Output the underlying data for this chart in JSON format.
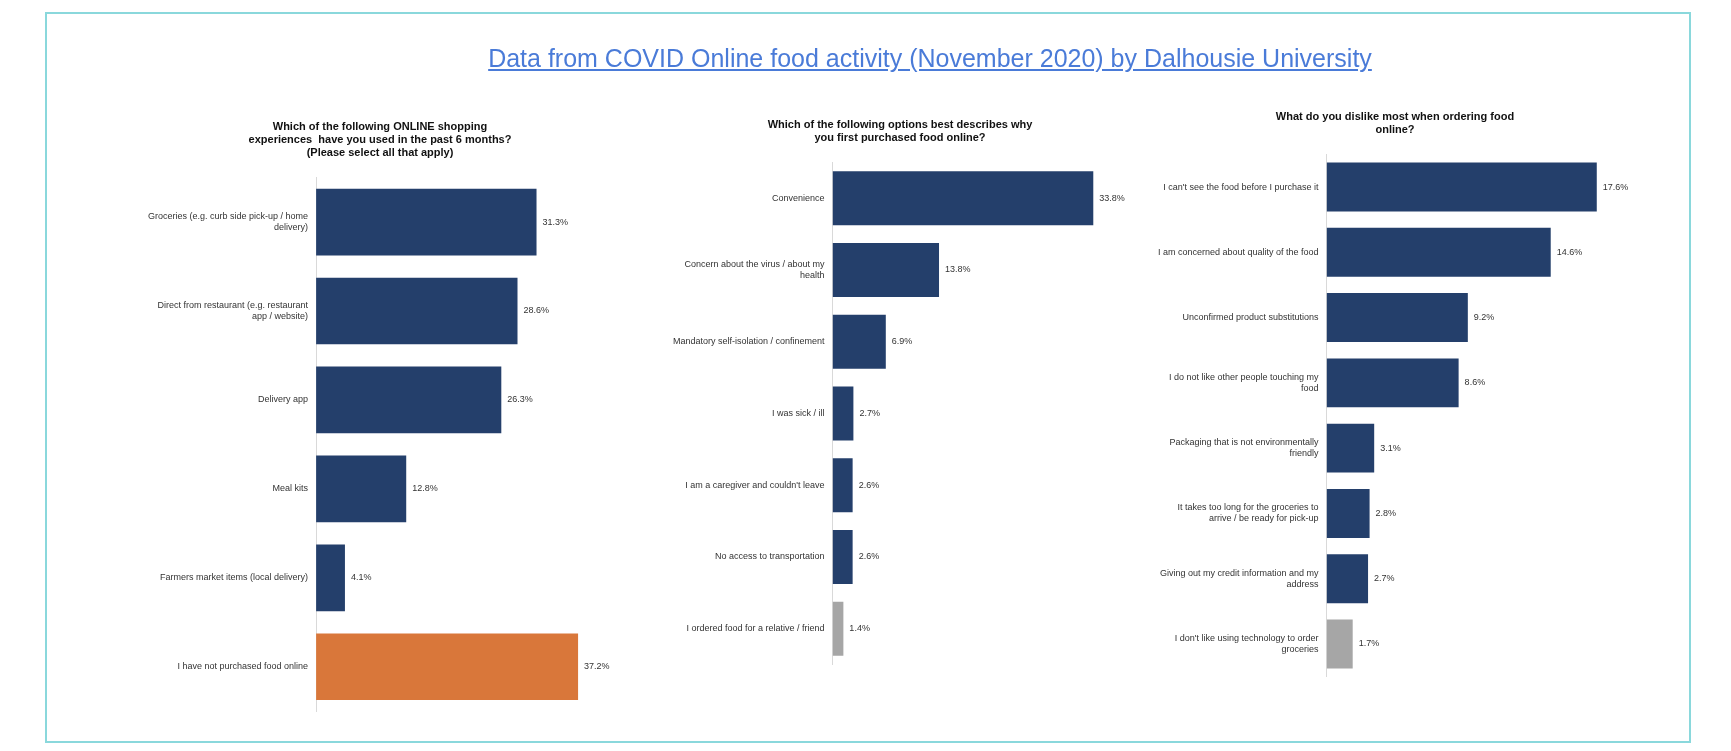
{
  "chart_data": [
    {
      "type": "bar",
      "orientation": "horizontal",
      "tick_labels": "y",
      "title": "Which of the following ONLINE shopping experiences  have you used in the past 6 months? (Please select all that apply)",
      "annotations": [
        "Data from COVID Online food activity (November 2020) by Dalhousie University"
      ],
      "categories": [
        "Groceries (e.g. curb side pick-up / home delivery)",
        "Direct from restaurant (e.g. restaurant app / website)",
        "Delivery app",
        "Meal kits",
        "Farmers market items (local delivery)",
        "I have not purchased food online"
      ],
      "values": [
        31.3,
        28.6,
        26.3,
        12.8,
        4.1,
        37.2
      ],
      "value_labels": [
        "31.3%",
        "28.6%",
        "26.3%",
        "12.8%",
        "4.1%",
        "37.2%"
      ],
      "colors": [
        "#243f6b",
        "#243f6b",
        "#243f6b",
        "#243f6b",
        "#243f6b",
        "#d9773a"
      ]
    },
    {
      "type": "bar",
      "orientation": "horizontal",
      "tick_labels": "y",
      "title": "Which of the following options best describes why you first purchased food online?",
      "categories": [
        "Convenience",
        "Concern about the virus / about my health",
        "Mandatory self-isolation / confinement",
        "I was sick / ill",
        "I am a caregiver and couldn't leave",
        "No access to transportation",
        "I ordered food for a relative / friend"
      ],
      "values": [
        33.8,
        13.8,
        6.9,
        2.7,
        2.6,
        2.6,
        1.4
      ],
      "value_labels": [
        "33.8%",
        "13.8%",
        "6.9%",
        "2.7%",
        "2.6%",
        "2.6%",
        "1.4%"
      ],
      "colors": [
        "#243f6b",
        "#243f6b",
        "#243f6b",
        "#243f6b",
        "#243f6b",
        "#243f6b",
        "#a6a6a6"
      ]
    },
    {
      "type": "bar",
      "orientation": "horizontal",
      "tick_labels": "y",
      "title": "What do you dislike most when ordering food online?",
      "categories": [
        "I can't see the food before I purchase it",
        "I am concerned about quality of the food",
        "Unconfirmed product substitutions",
        "I do not like other people touching my food",
        "Packaging that is not environmentally friendly",
        "It takes too long for the groceries to arrive / be ready for pick-up",
        "Giving out my credit information and my address",
        "I don't like using technology to order groceries"
      ],
      "values": [
        17.6,
        14.6,
        9.2,
        8.6,
        3.1,
        2.8,
        2.7,
        1.7
      ],
      "value_labels": [
        "17.6%",
        "14.6%",
        "9.2%",
        "8.6%",
        "3.1%",
        "2.8%",
        "2.7%",
        "1.7%"
      ],
      "colors": [
        "#243f6b",
        "#243f6b",
        "#243f6b",
        "#243f6b",
        "#243f6b",
        "#243f6b",
        "#243f6b",
        "#a6a6a6"
      ]
    }
  ]
}
